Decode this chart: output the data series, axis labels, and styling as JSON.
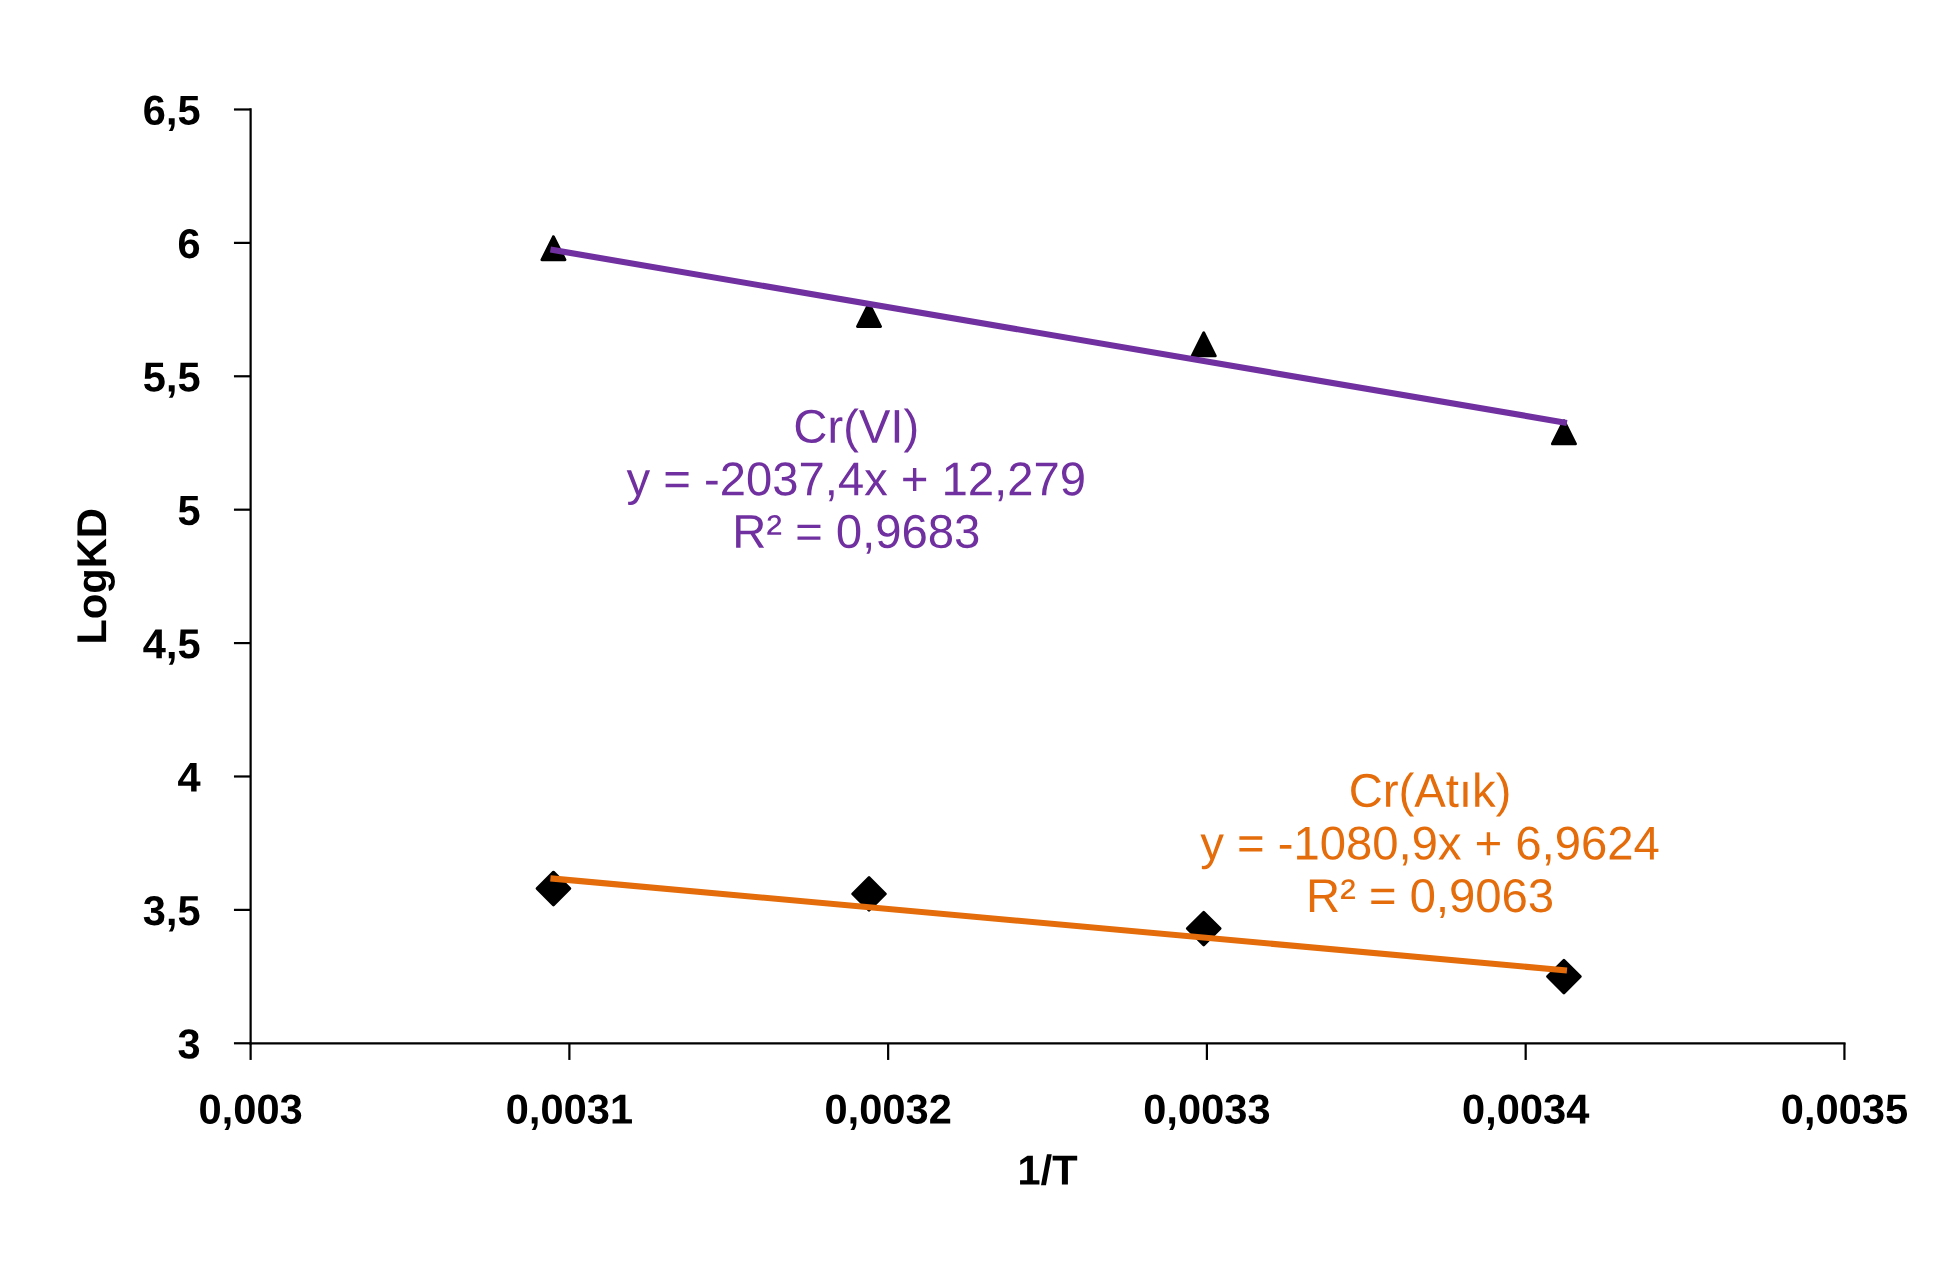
{
  "chart_data": {
    "type": "scatter",
    "xlabel": "1/T",
    "ylabel": "LogKD",
    "xlim": [
      0.003,
      0.0035
    ],
    "xticks": [
      {
        "value": 0.003,
        "label": "0,003"
      },
      {
        "value": 0.0031,
        "label": "0,0031"
      },
      {
        "value": 0.0032,
        "label": "0,0032"
      },
      {
        "value": 0.0033,
        "label": "0,0033"
      },
      {
        "value": 0.0034,
        "label": "0,0034"
      },
      {
        "value": 0.0035,
        "label": "0,0035"
      }
    ],
    "ylim": [
      3,
      6.5
    ],
    "yticks": [
      {
        "value": 3,
        "label": "3"
      },
      {
        "value": 3.5,
        "label": "3,5"
      },
      {
        "value": 4,
        "label": "4"
      },
      {
        "value": 4.5,
        "label": "4,5"
      },
      {
        "value": 5,
        "label": "5"
      },
      {
        "value": 5.5,
        "label": "5,5"
      },
      {
        "value": 6,
        "label": "6"
      },
      {
        "value": 6.5,
        "label": "6,5"
      }
    ],
    "grid": false,
    "legend": false,
    "series": [
      {
        "marker": "triangle",
        "color": "#000000",
        "x": [
          0.003095,
          0.003194,
          0.003299,
          0.003412
        ],
        "values": [
          5.98,
          5.73,
          5.62,
          5.29
        ]
      },
      {
        "marker": "diamond",
        "color": "#000000",
        "x": [
          0.003095,
          0.003194,
          0.003299,
          0.003412
        ],
        "values": [
          3.58,
          3.56,
          3.43,
          3.25
        ]
      },
      {
        "type": "line",
        "color": "#7030a0",
        "x": [
          0.003095,
          0.003412
        ],
        "values": [
          5.973,
          5.327
        ]
      },
      {
        "type": "line",
        "color": "#e46c0a",
        "x": [
          0.003095,
          0.003412
        ],
        "values": [
          3.617,
          3.274
        ]
      }
    ],
    "annotations": [
      "Cr(VI)\ny = -2037,4x + 12,279\nR² = 0,9683",
      "Cr(Atık)\ny = -1080,9x + 6,9624\nR² = 0,9063"
    ]
  }
}
